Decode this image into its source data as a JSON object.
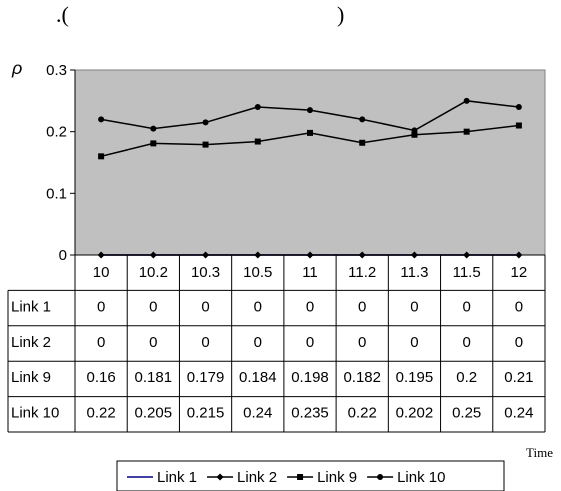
{
  "header": {
    "left_fragment": ".(",
    "right_fragment": ")"
  },
  "chart_data": {
    "type": "line",
    "ylabel": "ρ",
    "xlabel": "Time",
    "ylim": [
      0,
      0.3
    ],
    "yticks": [
      "0",
      "0.1",
      "0.2",
      "0.3"
    ],
    "grid": false,
    "plot_background": "#c0c0c0",
    "legend_position": "bottom",
    "categories": [
      "10",
      "10.2",
      "10.3",
      "10.5",
      "11",
      "11.2",
      "11.3",
      "11.5",
      "12"
    ],
    "series": [
      {
        "name": "Link 1",
        "marker": "none",
        "color": "#000080",
        "values": [
          0,
          0,
          0,
          0,
          0,
          0,
          0,
          0,
          0
        ],
        "labels": [
          "0",
          "0",
          "0",
          "0",
          "0",
          "0",
          "0",
          "0",
          "0"
        ]
      },
      {
        "name": "Link 2",
        "marker": "diamond",
        "color": "#000000",
        "values": [
          0,
          0,
          0,
          0,
          0,
          0,
          0,
          0,
          0
        ],
        "labels": [
          "0",
          "0",
          "0",
          "0",
          "0",
          "0",
          "0",
          "0",
          "0"
        ]
      },
      {
        "name": "Link 9",
        "marker": "square",
        "color": "#000000",
        "values": [
          0.16,
          0.181,
          0.179,
          0.184,
          0.198,
          0.182,
          0.195,
          0.2,
          0.21
        ],
        "labels": [
          "0.16",
          "0.181",
          "0.179",
          "0.184",
          "0.198",
          "0.182",
          "0.195",
          "0.2",
          "0.21"
        ]
      },
      {
        "name": "Link 10",
        "marker": "circle",
        "color": "#000000",
        "values": [
          0.22,
          0.205,
          0.215,
          0.24,
          0.235,
          0.22,
          0.202,
          0.25,
          0.24
        ],
        "labels": [
          "0.22",
          "0.205",
          "0.215",
          "0.24",
          "0.235",
          "0.22",
          "0.202",
          "0.25",
          "0.24"
        ]
      }
    ]
  }
}
